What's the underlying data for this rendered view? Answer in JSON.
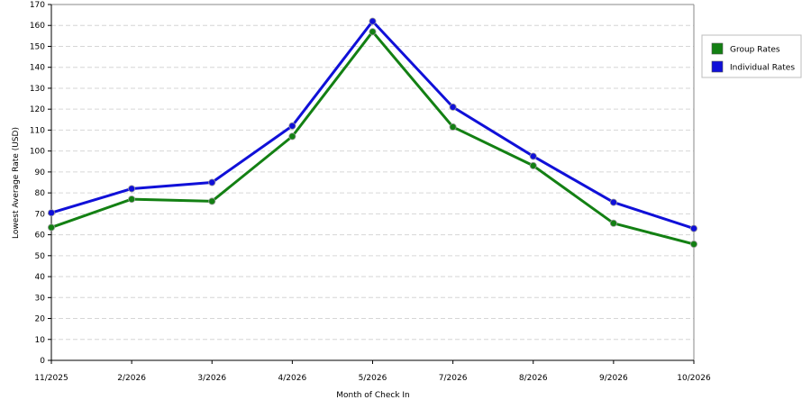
{
  "chart_data": {
    "type": "line",
    "title": "",
    "xlabel": "Month of Check In",
    "ylabel": "Lowest Average Rate (USD)",
    "categories": [
      "11/2025",
      "2/2026",
      "3/2026",
      "4/2026",
      "5/2026",
      "7/2026",
      "8/2026",
      "9/2026",
      "10/2026"
    ],
    "ylim": [
      0,
      170
    ],
    "y_ticks": [
      0,
      10,
      20,
      30,
      40,
      50,
      60,
      70,
      80,
      90,
      100,
      110,
      120,
      130,
      140,
      150,
      160,
      170
    ],
    "grid": true,
    "legend_position": "right",
    "series": [
      {
        "name": "Group Rates",
        "color": "#138013",
        "values": [
          63.5,
          77,
          76,
          107,
          157,
          111.5,
          93,
          65.5,
          55.5
        ]
      },
      {
        "name": "Individual Rates",
        "color": "#1010d8",
        "values": [
          70.5,
          82,
          85,
          112,
          162,
          121,
          97.5,
          75.5,
          63
        ]
      }
    ]
  }
}
